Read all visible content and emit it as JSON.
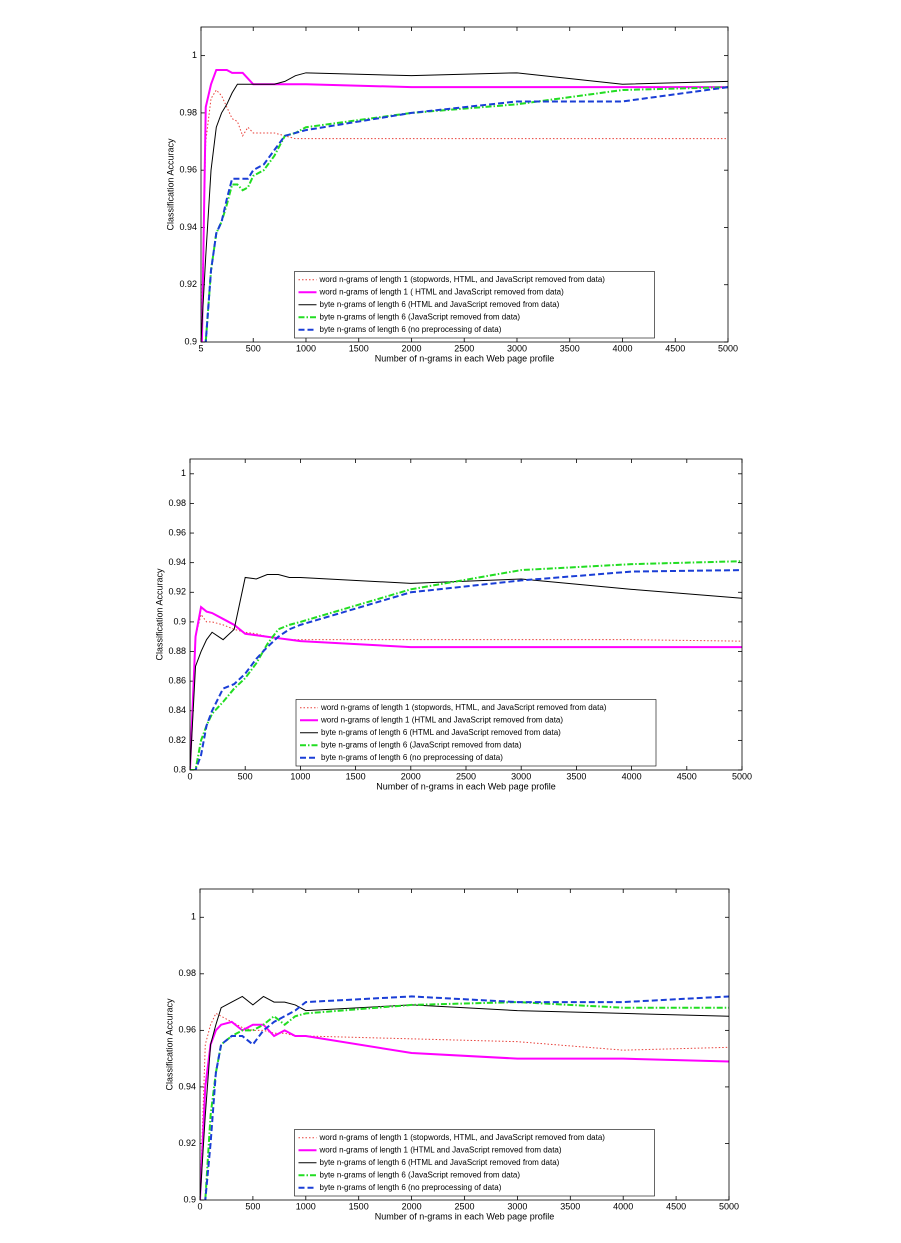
{
  "chart_data": [
    {
      "type": "line",
      "xlabel": "Number of n-grams in each Web page profile",
      "ylabel": "Classification Accuracy",
      "x": [
        5,
        50,
        100,
        150,
        200,
        250,
        300,
        350,
        400,
        450,
        500,
        600,
        700,
        800,
        900,
        1000,
        2000,
        3000,
        4000,
        5000
      ],
      "xlim": [
        5,
        5000
      ],
      "xticks": [
        5,
        500,
        1000,
        1500,
        2000,
        2500,
        3000,
        3500,
        4000,
        4500,
        5000
      ],
      "ylim": [
        0.9,
        1.01
      ],
      "yticks": [
        0.9,
        0.92,
        0.94,
        0.96,
        0.98,
        1
      ],
      "grid": false,
      "legend": "lower center",
      "series": [
        {
          "name": "word n-grams of length 1 (stopwords, HTML, and JavaScript removed from data)",
          "color": "#e8403a",
          "style": "dotted",
          "width": 1,
          "values": [
            0.9,
            0.97,
            0.985,
            0.988,
            0.986,
            0.982,
            0.978,
            0.977,
            0.972,
            0.975,
            0.973,
            0.973,
            0.973,
            0.972,
            0.971,
            0.971,
            0.971,
            0.971,
            0.971,
            0.971
          ]
        },
        {
          "name": "word n-grams of length 1 ( HTML and JavaScript removed from data)",
          "color": "#ff00ff",
          "style": "solid",
          "width": 2,
          "values": [
            0.88,
            0.982,
            0.99,
            0.995,
            0.995,
            0.995,
            0.994,
            0.994,
            0.994,
            0.992,
            0.99,
            0.99,
            0.99,
            0.99,
            0.99,
            0.99,
            0.989,
            0.989,
            0.989,
            0.989
          ]
        },
        {
          "name": "byte n-grams of length 6 (HTML and JavaScript removed from data)",
          "color": "#000000",
          "style": "solid",
          "width": 1,
          "values": [
            0.9,
            0.93,
            0.96,
            0.975,
            0.98,
            0.983,
            0.987,
            0.99,
            0.99,
            0.99,
            0.99,
            0.99,
            0.99,
            0.991,
            0.993,
            0.994,
            0.993,
            0.994,
            0.99,
            0.991
          ]
        },
        {
          "name": "byte n-grams of length 6 (JavaScript removed from data)",
          "color": "#22dd22",
          "style": "dashdot",
          "width": 2,
          "values": [
            0.88,
            0.9,
            0.925,
            0.938,
            0.942,
            0.948,
            0.955,
            0.955,
            0.953,
            0.954,
            0.958,
            0.96,
            0.965,
            0.972,
            0.973,
            0.975,
            0.98,
            0.983,
            0.988,
            0.989
          ]
        },
        {
          "name": "byte n-grams of length 6 (no preprocessing of data)",
          "color": "#1a3ed6",
          "style": "dashed",
          "width": 2,
          "values": [
            0.88,
            0.9,
            0.925,
            0.938,
            0.942,
            0.95,
            0.957,
            0.957,
            0.957,
            0.957,
            0.96,
            0.962,
            0.967,
            0.972,
            0.973,
            0.974,
            0.98,
            0.984,
            0.984,
            0.989
          ]
        }
      ]
    },
    {
      "type": "line",
      "xlabel": "Number of n-grams in each Web page profile",
      "ylabel": "Classification Accuracy",
      "x": [
        0,
        50,
        100,
        150,
        200,
        300,
        400,
        500,
        600,
        700,
        800,
        900,
        1000,
        2000,
        3000,
        4000,
        5000
      ],
      "xlim": [
        0,
        5000
      ],
      "xticks": [
        0,
        500,
        1000,
        1500,
        2000,
        2500,
        3000,
        3500,
        4000,
        4500,
        5000
      ],
      "ylim": [
        0.8,
        1.01
      ],
      "yticks": [
        0.8,
        0.82,
        0.84,
        0.86,
        0.88,
        0.9,
        0.92,
        0.94,
        0.96,
        0.98,
        1
      ],
      "grid": false,
      "legend": "lower center",
      "series": [
        {
          "name": "word n-grams of length 1 (stopwords, HTML, and JavaScript removed from data)",
          "color": "#e8403a",
          "style": "dotted",
          "width": 1,
          "values": [
            0.8,
            0.89,
            0.905,
            0.9,
            0.9,
            0.898,
            0.895,
            0.893,
            0.892,
            0.89,
            0.889,
            0.888,
            0.888,
            0.888,
            0.888,
            0.888,
            0.887
          ]
        },
        {
          "name": "word n-grams of length 1 (HTML and JavaScript removed from data)",
          "color": "#ff00ff",
          "style": "solid",
          "width": 2,
          "values": [
            0.8,
            0.89,
            0.91,
            0.907,
            0.906,
            0.902,
            0.898,
            0.892,
            0.891,
            0.89,
            0.889,
            0.888,
            0.887,
            0.883,
            0.883,
            0.883,
            0.883
          ]
        },
        {
          "name": "byte n-grams of length 6 (HTML and JavaScript removed from data)",
          "color": "#000000",
          "style": "solid",
          "width": 1,
          "values": [
            0.8,
            0.87,
            0.88,
            0.888,
            0.893,
            0.888,
            0.895,
            0.93,
            0.929,
            0.932,
            0.932,
            0.93,
            0.93,
            0.926,
            0.929,
            0.922,
            0.916
          ]
        },
        {
          "name": "byte n-grams of length 6 (JavaScript removed from data)",
          "color": "#22dd22",
          "style": "dashdot",
          "width": 2,
          "values": [
            0.8,
            0.8,
            0.82,
            0.83,
            0.838,
            0.846,
            0.855,
            0.862,
            0.872,
            0.885,
            0.895,
            0.898,
            0.9,
            0.922,
            0.935,
            0.939,
            0.941
          ]
        },
        {
          "name": "byte n-grams of length 6 (no preprocessing of data)",
          "color": "#1a3ed6",
          "style": "dashed",
          "width": 2,
          "values": [
            0.78,
            0.8,
            0.81,
            0.83,
            0.84,
            0.855,
            0.858,
            0.865,
            0.875,
            0.883,
            0.89,
            0.895,
            0.898,
            0.92,
            0.928,
            0.934,
            0.935
          ]
        }
      ]
    },
    {
      "type": "line",
      "xlabel": "Number of n-grams in each Web page profile",
      "ylabel": "Classification Accuracy",
      "x": [
        0,
        50,
        100,
        150,
        200,
        300,
        400,
        500,
        600,
        700,
        800,
        900,
        1000,
        2000,
        3000,
        4000,
        5000
      ],
      "xlim": [
        0,
        5000
      ],
      "xticks": [
        0,
        500,
        1000,
        1500,
        2000,
        2500,
        3000,
        3500,
        4000,
        4500,
        5000
      ],
      "ylim": [
        0.9,
        1.01
      ],
      "yticks": [
        0.9,
        0.92,
        0.94,
        0.96,
        0.98,
        1
      ],
      "grid": false,
      "legend": "lower center",
      "series": [
        {
          "name": "word n-grams of length 1 (stopwords, HTML, and JavaScript removed from data)",
          "color": "#e8403a",
          "style": "dotted",
          "width": 1,
          "values": [
            0.9,
            0.955,
            0.962,
            0.966,
            0.965,
            0.963,
            0.961,
            0.96,
            0.96,
            0.959,
            0.959,
            0.958,
            0.958,
            0.957,
            0.956,
            0.953,
            0.954
          ]
        },
        {
          "name": "word n-grams of length 1 (HTML and JavaScript removed from data)",
          "color": "#ff00ff",
          "style": "solid",
          "width": 2,
          "values": [
            0.9,
            0.94,
            0.955,
            0.96,
            0.962,
            0.963,
            0.96,
            0.962,
            0.962,
            0.958,
            0.96,
            0.958,
            0.958,
            0.952,
            0.95,
            0.95,
            0.949
          ]
        },
        {
          "name": "byte n-grams of length 6 (HTML and JavaScript removed from data)",
          "color": "#000000",
          "style": "solid",
          "width": 1,
          "values": [
            0.9,
            0.93,
            0.955,
            0.962,
            0.968,
            0.97,
            0.972,
            0.969,
            0.972,
            0.97,
            0.97,
            0.969,
            0.967,
            0.969,
            0.967,
            0.966,
            0.965
          ]
        },
        {
          "name": "byte n-grams of length 6 (JavaScript removed from data)",
          "color": "#22dd22",
          "style": "dashdot",
          "width": 2,
          "values": [
            0.88,
            0.9,
            0.93,
            0.945,
            0.955,
            0.958,
            0.96,
            0.96,
            0.962,
            0.965,
            0.962,
            0.965,
            0.966,
            0.969,
            0.97,
            0.968,
            0.968
          ]
        },
        {
          "name": "byte n-grams of length 6 (no preprocessing of data)",
          "color": "#1a3ed6",
          "style": "dashed",
          "width": 2,
          "values": [
            0.88,
            0.9,
            0.92,
            0.945,
            0.955,
            0.958,
            0.958,
            0.955,
            0.96,
            0.963,
            0.965,
            0.967,
            0.97,
            0.972,
            0.97,
            0.97,
            0.972
          ]
        }
      ]
    }
  ]
}
